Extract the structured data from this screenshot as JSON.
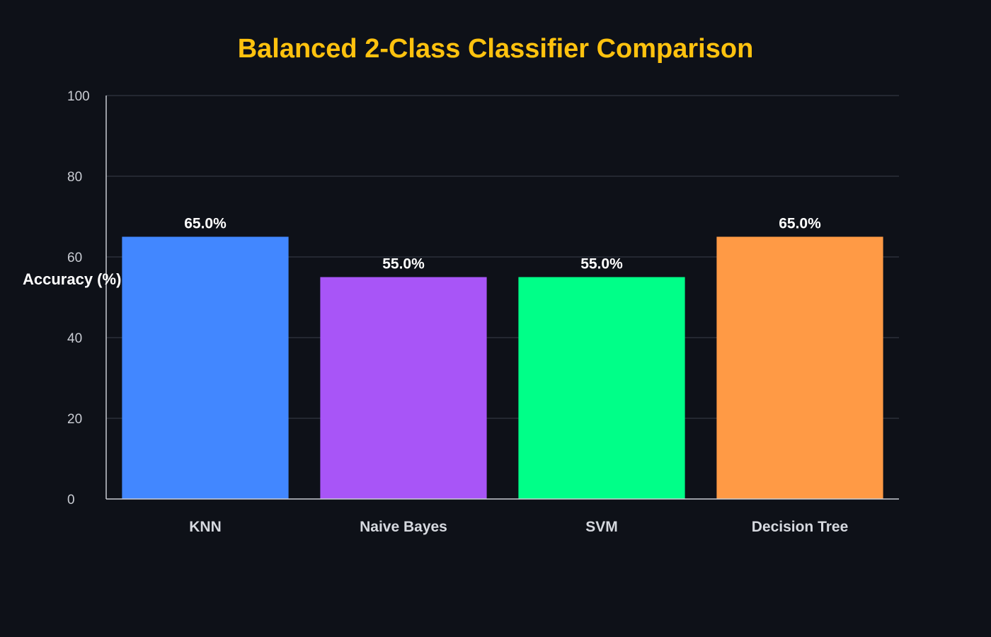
{
  "colors": {
    "background": "#0e1118",
    "title": "#ffc20e",
    "grid": "#3a3f4a",
    "axis": "#c9ccd3"
  },
  "chart_data": {
    "type": "bar",
    "title": "Balanced 2-Class Classifier Comparison",
    "xlabel": "",
    "ylabel": "Accuracy (%)",
    "ylim": [
      0,
      100
    ],
    "yticks": [
      0,
      20,
      40,
      60,
      80,
      100
    ],
    "grid": true,
    "categories": [
      "KNN",
      "Naive Bayes",
      "SVM",
      "Decision Tree"
    ],
    "values": [
      65.0,
      55.0,
      55.0,
      65.0
    ],
    "data_labels": [
      "65.0%",
      "55.0%",
      "55.0%",
      "65.0%"
    ],
    "bar_colors": [
      "#4287ff",
      "#a855f7",
      "#00ff88",
      "#ff9a45"
    ]
  }
}
